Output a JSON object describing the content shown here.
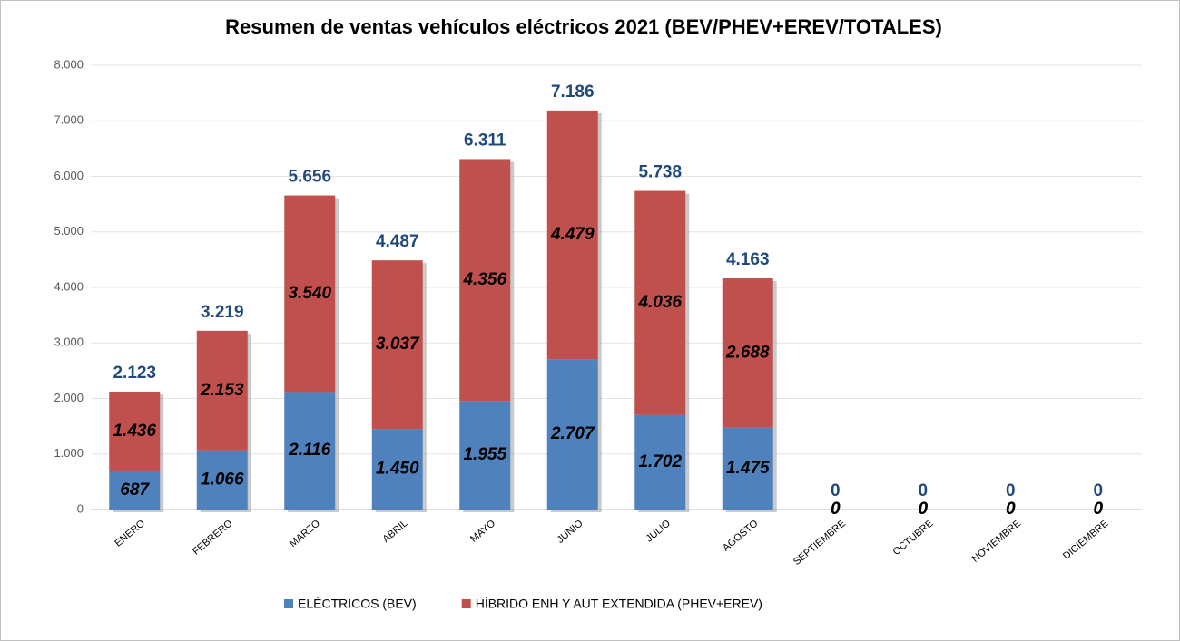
{
  "chart_data": {
    "type": "stacked-bar",
    "title": "Resumen de ventas vehículos eléctricos 2021 (BEV/PHEV+EREV/TOTALES)",
    "categories": [
      "ENERO",
      "FEBRERO",
      "MARZO",
      "ABRIL",
      "MAYO",
      "JUNIO",
      "JULIO",
      "AGOSTO",
      "SEPTIEMBRE",
      "OCTUBRE",
      "NOVIEMBRE",
      "DICIEMBRE"
    ],
    "series": [
      {
        "name": "ELÉCTRICOS (BEV)",
        "color": "#4f81bd",
        "values": [
          687,
          1066,
          2116,
          1450,
          1955,
          2707,
          1702,
          1475,
          0,
          0,
          0,
          0
        ],
        "value_labels": [
          "687",
          "1.066",
          "2.116",
          "1.450",
          "1.955",
          "2.707",
          "1.702",
          "1.475",
          "0",
          "0",
          "0",
          "0"
        ]
      },
      {
        "name": "HÍBRIDO ENH Y AUT EXTENDIDA (PHEV+EREV)",
        "color": "#c0504d",
        "values": [
          1436,
          2153,
          3540,
          3037,
          4356,
          4479,
          4036,
          2688,
          0,
          0,
          0,
          0
        ],
        "value_labels": [
          "1.436",
          "2.153",
          "3.540",
          "3.037",
          "4.356",
          "4.479",
          "4.036",
          "2.688",
          "0",
          "0",
          "0",
          "0"
        ]
      }
    ],
    "totals": {
      "color": "#1f497d",
      "values": [
        2123,
        3219,
        5656,
        4487,
        6311,
        7186,
        5738,
        4163,
        0,
        0,
        0,
        0
      ],
      "value_labels": [
        "2.123",
        "3.219",
        "5.656",
        "4.487",
        "6.311",
        "7.186",
        "5.738",
        "4.163",
        "0",
        "0",
        "0",
        "0"
      ]
    },
    "ylim": [
      0,
      8000
    ],
    "yticks": [
      0,
      {
        "value": 1000,
        "label": "1.000"
      },
      {
        "value": 2000,
        "label": "2.000"
      },
      {
        "value": 3000,
        "label": "3.000"
      },
      {
        "value": 4000,
        "label": "4.000"
      },
      {
        "value": 5000,
        "label": "5.000"
      },
      {
        "value": 6000,
        "label": "6.000"
      },
      {
        "value": 7000,
        "label": "7.000"
      },
      {
        "value": 8000,
        "label": "8.000"
      }
    ],
    "grid": true,
    "legend": "bottom"
  }
}
